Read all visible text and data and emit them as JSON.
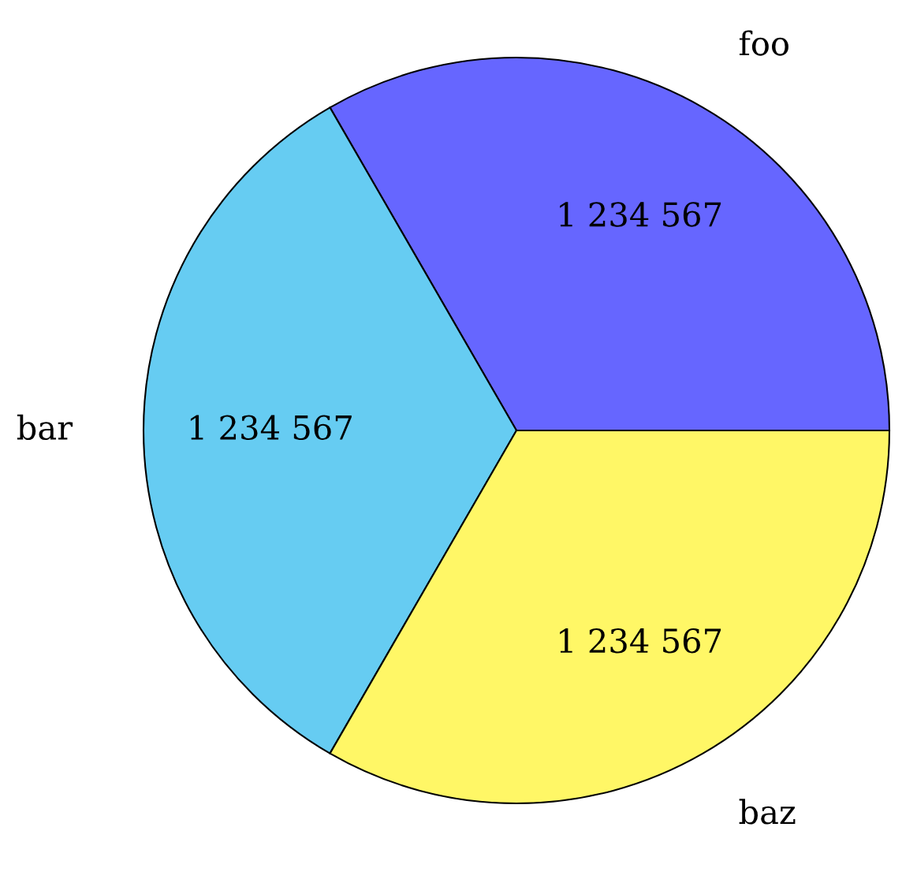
{
  "chart_data": {
    "type": "pie",
    "categories": [
      "foo",
      "bar",
      "baz"
    ],
    "values": [
      1234567,
      1234567,
      1234567
    ],
    "value_labels": [
      "1 234 567",
      "1 234 567",
      "1 234 567"
    ],
    "colors": [
      "#6666ff",
      "#66ccf2",
      "#fff766"
    ],
    "legend": false
  }
}
